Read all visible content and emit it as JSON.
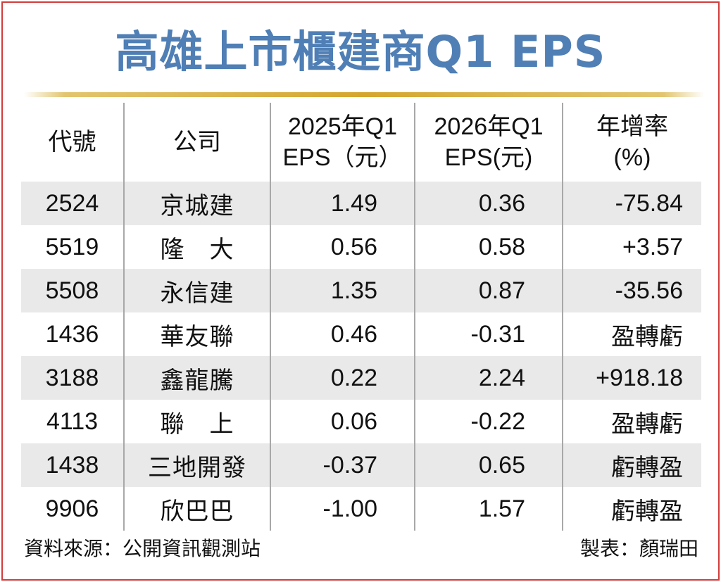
{
  "title": "高雄上市櫃建商Q1 EPS",
  "chart_data": {
    "type": "table",
    "title": "高雄上市櫃建商Q1 EPS",
    "columns": [
      "代號",
      "公司",
      "2025年Q1 EPS（元）",
      "2026年Q1 EPS(元)",
      "年增率 (%)"
    ],
    "header_lines": [
      [
        "代號"
      ],
      [
        "公司"
      ],
      [
        "2025年Q1",
        "EPS（元）"
      ],
      [
        "2026年Q1",
        "EPS(元)"
      ],
      [
        "年增率",
        "(%)"
      ]
    ],
    "rows": [
      {
        "code": "2524",
        "company": "京城建",
        "eps_2025": "1.49",
        "eps_2026": "0.36",
        "growth": "-75.84"
      },
      {
        "code": "5519",
        "company": "隆　大",
        "eps_2025": "0.56",
        "eps_2026": "0.58",
        "growth": "+3.57"
      },
      {
        "code": "5508",
        "company": "永信建",
        "eps_2025": "1.35",
        "eps_2026": "0.87",
        "growth": "-35.56"
      },
      {
        "code": "1436",
        "company": "華友聯",
        "eps_2025": "0.46",
        "eps_2026": "-0.31",
        "growth": "盈轉虧"
      },
      {
        "code": "3188",
        "company": "鑫龍騰",
        "eps_2025": "0.22",
        "eps_2026": "2.24",
        "growth": "+918.18"
      },
      {
        "code": "4113",
        "company": "聯　上",
        "eps_2025": "0.06",
        "eps_2026": "-0.22",
        "growth": "盈轉虧"
      },
      {
        "code": "1438",
        "company": "三地開發",
        "eps_2025": "-0.37",
        "eps_2026": "0.65",
        "growth": "虧轉盈"
      },
      {
        "code": "9906",
        "company": "欣巴巴",
        "eps_2025": "-1.00",
        "eps_2026": "1.57",
        "growth": "虧轉盈"
      }
    ]
  },
  "footer": {
    "source": "資料來源：公開資訊觀測站",
    "credit": "製表：顏瑞田"
  },
  "colors": {
    "title": "#4f7fb5",
    "gold_rule": "#d5a62e",
    "stripe": "#e9e9e9",
    "frame": "#d43c3c"
  }
}
